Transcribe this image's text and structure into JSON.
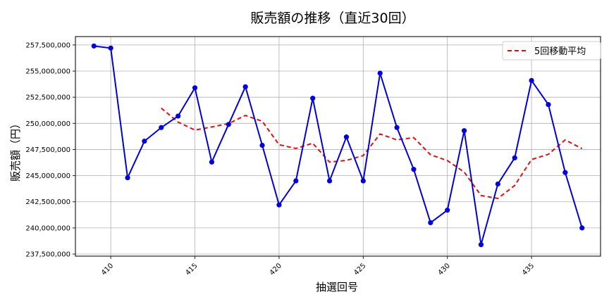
{
  "chart_data": {
    "type": "line",
    "title": "販売額の推移（直近30回）",
    "xlabel": "抽選回号",
    "ylabel": "販売額（円）",
    "x": [
      409,
      410,
      411,
      412,
      413,
      414,
      415,
      416,
      417,
      418,
      419,
      420,
      421,
      422,
      423,
      424,
      425,
      426,
      427,
      428,
      429,
      430,
      431,
      432,
      433,
      434,
      435,
      436,
      437,
      438
    ],
    "series": [
      {
        "name": "販売額",
        "color": "#0000dd",
        "style": "solid-with-markers",
        "values": [
          257400000,
          257200000,
          244800000,
          248300000,
          249600000,
          250700000,
          253400000,
          246300000,
          249900000,
          253500000,
          247900000,
          242200000,
          244500000,
          252400000,
          244500000,
          248700000,
          244500000,
          254800000,
          249600000,
          245600000,
          240500000,
          241700000,
          249300000,
          238400000,
          244200000,
          246700000,
          254100000,
          251800000,
          245300000,
          240000000
        ]
      },
      {
        "name": "5回移動平均",
        "color": "#dd1111",
        "style": "dashed",
        "start_x": 413,
        "window": 5
      }
    ],
    "xticks": [
      410,
      415,
      420,
      425,
      430,
      435
    ],
    "yticks": [
      237500000,
      240000000,
      242500000,
      245000000,
      247500000,
      250000000,
      252500000,
      255000000,
      257500000
    ],
    "ytick_labels": [
      "237,500,000",
      "240,000,000",
      "242,500,000",
      "245,000,000",
      "247,500,000",
      "250,000,000",
      "252,500,000",
      "255,000,000",
      "257,500,000"
    ],
    "xlim": [
      407.9,
      439.1
    ],
    "ylim": [
      237300000,
      258300000
    ],
    "grid": true,
    "legend": {
      "position": "upper right",
      "entries": [
        "5回移動平均"
      ]
    }
  }
}
